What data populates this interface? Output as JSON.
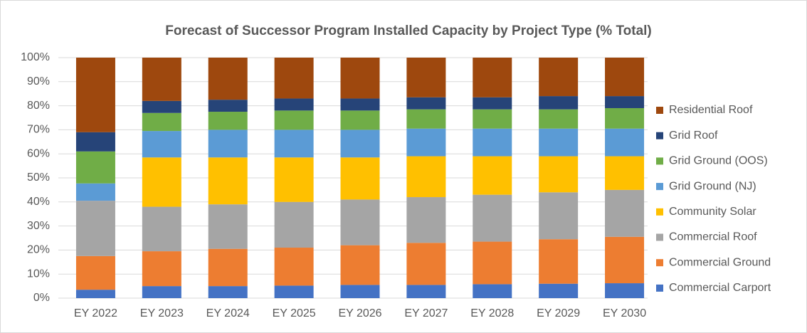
{
  "chart_data": {
    "type": "stacked_bar",
    "title": "Forecast of Successor Program Installed Capacity by Project Type (% Total)",
    "categories": [
      "EY 2022",
      "EY 2023",
      "EY 2024",
      "EY 2025",
      "EY 2026",
      "EY 2027",
      "EY 2028",
      "EY 2029",
      "EY 2030"
    ],
    "series": [
      {
        "name": "Commercial Carport",
        "color": "#4472c4",
        "values": [
          3.5,
          5,
          5,
          5.2,
          5.5,
          5.5,
          5.8,
          6,
          6.2
        ]
      },
      {
        "name": "Commercial Ground",
        "color": "#ed7d31",
        "values": [
          14,
          14.5,
          15.5,
          15.8,
          16.5,
          17.5,
          17.7,
          18.5,
          19.3
        ]
      },
      {
        "name": "Commercial Roof",
        "color": "#a5a5a5",
        "values": [
          23,
          18.5,
          18.5,
          19,
          19,
          19,
          19.5,
          19.5,
          19.5
        ]
      },
      {
        "name": "Community Solar",
        "color": "#ffc000",
        "values": [
          0,
          20.5,
          19.5,
          18.5,
          17.5,
          17,
          16,
          15,
          14
        ]
      },
      {
        "name": "Grid Ground (NJ)",
        "color": "#5b9bd5",
        "values": [
          7.2,
          11,
          11.5,
          11.5,
          11.5,
          11.5,
          11.5,
          11.5,
          11.5
        ]
      },
      {
        "name": "Grid Ground (OOS)",
        "color": "#70ad47",
        "values": [
          13.3,
          7.5,
          7.5,
          8,
          8,
          8,
          8,
          8,
          8.5
        ]
      },
      {
        "name": "Grid Roof",
        "color": "#264478",
        "values": [
          8,
          5,
          5,
          5,
          5,
          5,
          5,
          5.5,
          5
        ]
      },
      {
        "name": "Residential Roof",
        "color": "#9e480e",
        "values": [
          31,
          18,
          17.5,
          17,
          17,
          16.5,
          16.5,
          16,
          16
        ]
      }
    ],
    "ylim": [
      0,
      100
    ],
    "yticks": [
      {
        "value": 0,
        "label": "0%"
      },
      {
        "value": 10,
        "label": "10%"
      },
      {
        "value": 20,
        "label": "20%"
      },
      {
        "value": 30,
        "label": "30%"
      },
      {
        "value": 40,
        "label": "40%"
      },
      {
        "value": 50,
        "label": "50%"
      },
      {
        "value": 60,
        "label": "60%"
      },
      {
        "value": 70,
        "label": "70%"
      },
      {
        "value": 80,
        "label": "80%"
      },
      {
        "value": 90,
        "label": "90%"
      },
      {
        "value": 100,
        "label": "100%"
      }
    ],
    "grid": true,
    "legend": "right"
  }
}
